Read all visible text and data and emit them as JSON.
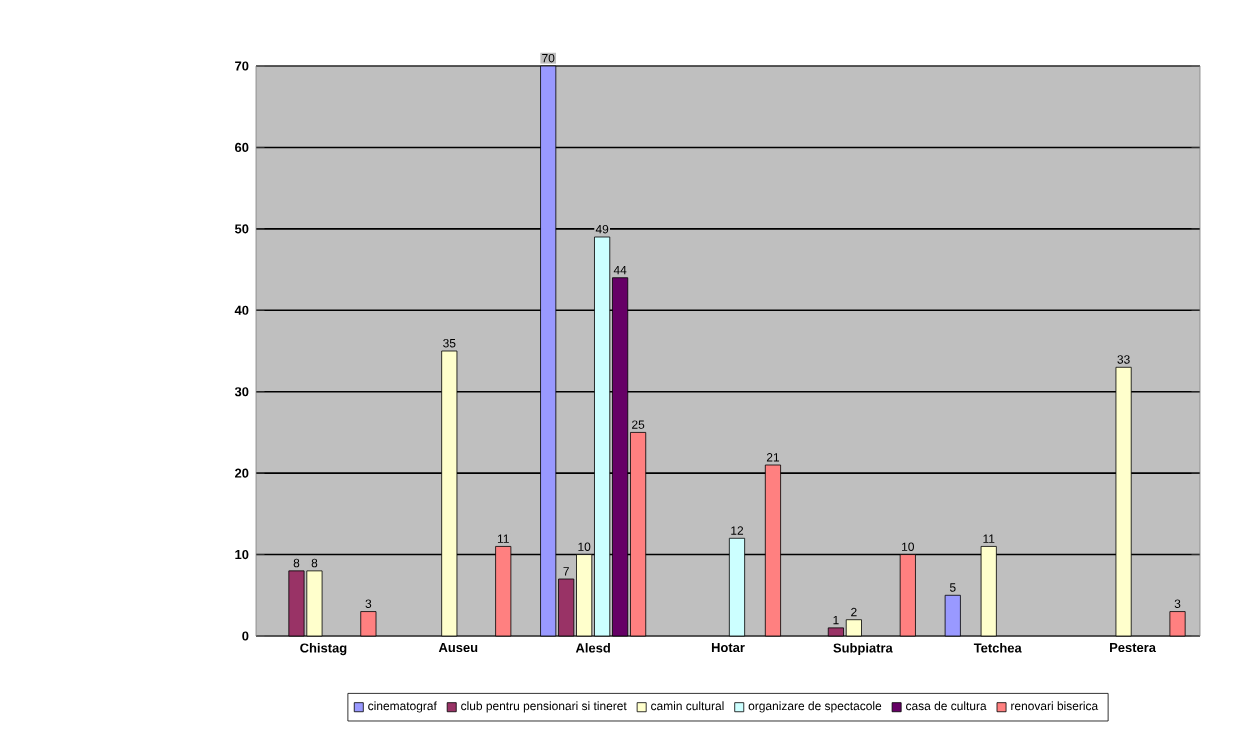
{
  "chart_data": {
    "type": "bar",
    "categories": [
      "Chistag",
      "Auseu",
      "Alesd",
      "Hotar",
      "Subpiatra",
      "Tetchea",
      "Pestera"
    ],
    "series": [
      {
        "name": "cinematograf",
        "color": "#9999ff",
        "values": [
          null,
          null,
          70,
          null,
          null,
          5,
          null
        ]
      },
      {
        "name": "club pentru pensionari si tineret",
        "color": "#993366",
        "values": [
          8,
          null,
          7,
          null,
          1,
          null,
          null
        ]
      },
      {
        "name": "camin cultural",
        "color": "#ffffcc",
        "values": [
          8,
          35,
          10,
          null,
          2,
          11,
          33
        ]
      },
      {
        "name": "organizare de spectacole",
        "color": "#ccffff",
        "values": [
          null,
          null,
          49,
          12,
          null,
          null,
          null
        ]
      },
      {
        "name": "casa de cultura",
        "color": "#660066",
        "values": [
          null,
          null,
          44,
          null,
          null,
          null,
          null
        ]
      },
      {
        "name": "renovari biserica",
        "color": "#ff8080",
        "values": [
          3,
          11,
          25,
          21,
          10,
          null,
          3
        ]
      }
    ],
    "ylim": [
      0,
      70
    ],
    "yticks": [
      0,
      10,
      20,
      30,
      40,
      50,
      60,
      70
    ],
    "grid": "y",
    "legend": "bottom",
    "data_labels": true
  }
}
